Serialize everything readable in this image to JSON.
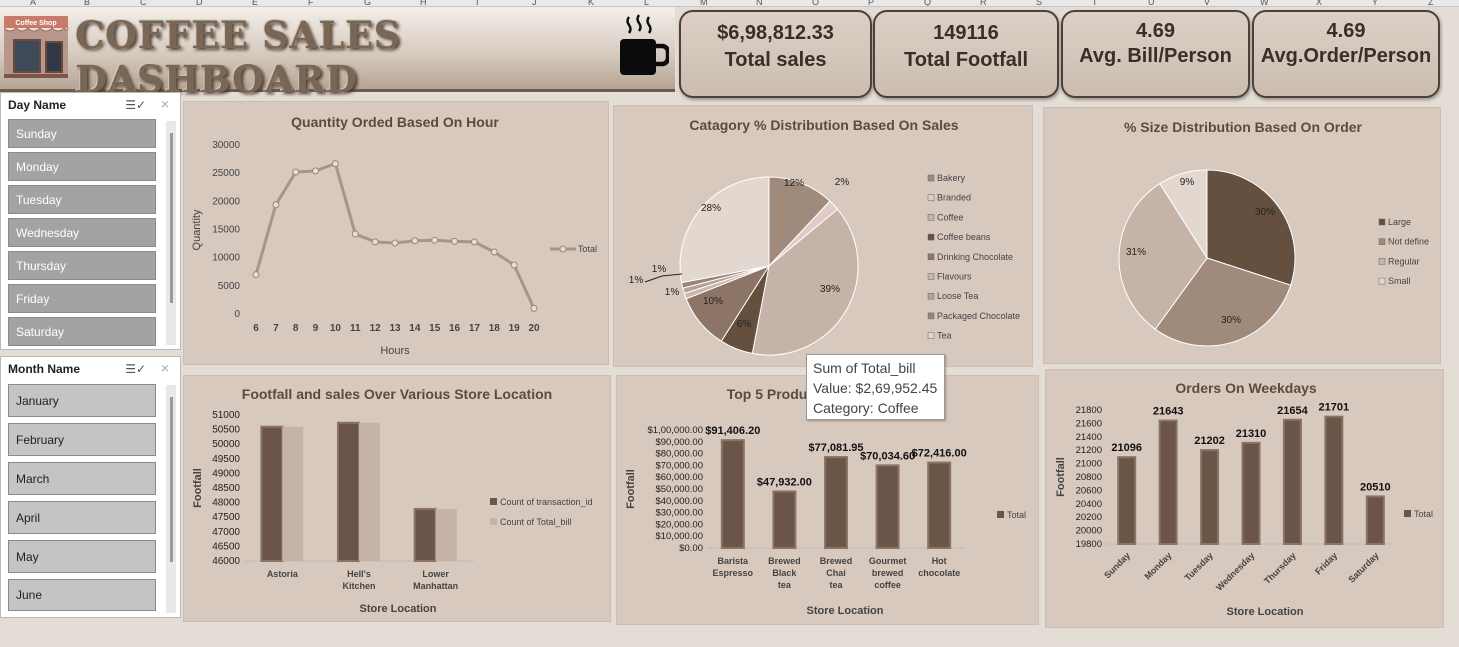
{
  "sheet_columns": [
    "A",
    "B",
    "C",
    "D",
    "E",
    "F",
    "G",
    "H",
    "I",
    "J",
    "K",
    "L",
    "M",
    "N",
    "O",
    "P",
    "Q",
    "R",
    "S",
    "T",
    "U",
    "V",
    "W",
    "X",
    "Y",
    "Z"
  ],
  "banner": {
    "title": "COFFEE SALES DASHBOARD",
    "shop_sign": "Coffee Shop"
  },
  "kpis": [
    {
      "value": "$6,98,812.33",
      "label": "Total sales"
    },
    {
      "value": "149116",
      "label": "Total Footfall"
    },
    {
      "value": "4.69",
      "label": "Avg. Bill/Person"
    },
    {
      "value": "4.69",
      "label": "Avg.Order/Person"
    }
  ],
  "slicer_day": {
    "title": "Day Name",
    "items": [
      "Sunday",
      "Monday",
      "Tuesday",
      "Wednesday",
      "Thursday",
      "Friday",
      "Saturday"
    ]
  },
  "slicer_month": {
    "title": "Month Name",
    "items": [
      "January",
      "February",
      "March",
      "April",
      "May",
      "June"
    ]
  },
  "colors": {
    "dark": "#6b5548",
    "mid": "#a08a7c",
    "light": "#c5b3a8",
    "pale": "#e3d8cf",
    "line": "#a8948a"
  },
  "tooltip": {
    "line1": "Sum of Total_bill",
    "line2": "Value: $2,69,952.45",
    "line3": "Category: Coffee"
  },
  "chart_data": [
    {
      "id": "hour",
      "type": "line",
      "title": "Quantity Orded Based On Hour",
      "xlabel": "Hours",
      "ylabel": "Quantity",
      "x": [
        6,
        7,
        8,
        9,
        10,
        11,
        12,
        13,
        14,
        15,
        16,
        17,
        18,
        19,
        20
      ],
      "series": [
        {
          "name": "Total",
          "values": [
            7000,
            19400,
            25200,
            25400,
            26700,
            14200,
            12800,
            12600,
            13000,
            13100,
            12900,
            12800,
            11000,
            8700,
            1000
          ]
        }
      ],
      "yticks": [
        "0",
        "5000",
        "10000",
        "15000",
        "20000",
        "25000",
        "30000"
      ],
      "ylim": [
        0,
        30000
      ],
      "legend": "right"
    },
    {
      "id": "category",
      "type": "pie",
      "title": "Catagory % Distribution Based On Sales",
      "labels": [
        "Bakery",
        "Branded",
        "Coffee",
        "Coffee beans",
        "Drinking Chocolate",
        "Flavours",
        "Loose Tea",
        "Packaged Chocolate",
        "Tea"
      ],
      "values": [
        12,
        2,
        39,
        6,
        10,
        1,
        1,
        1,
        28
      ],
      "value_labels": [
        "12%",
        "2%",
        "39%",
        "6%",
        "10%",
        "1%",
        "1%",
        "1%",
        "28%"
      ],
      "colors": [
        "#a08a7c",
        "#e4c9c9",
        "#c5b3a8",
        "#65503f",
        "#8c7566",
        "#c9b6aa",
        "#b7a296",
        "#9a8475",
        "#e3d8cf"
      ],
      "legend": "right"
    },
    {
      "id": "size",
      "type": "pie",
      "title": "% Size Distribution  Based On Order",
      "labels": [
        "Large",
        "Not define",
        "Regular",
        "Small"
      ],
      "values": [
        30,
        30,
        31,
        9
      ],
      "value_labels": [
        "30%",
        "30%",
        "31%",
        "9%"
      ],
      "colors": [
        "#65503f",
        "#a08a7c",
        "#c5b3a8",
        "#e3d8cf"
      ],
      "legend": "right"
    },
    {
      "id": "location",
      "type": "bar",
      "title": "Footfall and sales Over Various Store Location",
      "xlabel": "Store Location",
      "ylabel": "Footfall",
      "categories": [
        "Astoria",
        "Hell's Kitchen",
        "Lower Manhattan"
      ],
      "series": [
        {
          "name": "Count of transaction_id",
          "values": [
            50599,
            50735,
            47782
          ]
        },
        {
          "name": "Count of Total_bill",
          "values": [
            50599,
            50735,
            47782
          ]
        }
      ],
      "yticks": [
        "46000",
        "46500",
        "47000",
        "47500",
        "48000",
        "48500",
        "49000",
        "49500",
        "50000",
        "50500",
        "51000"
      ],
      "ylim": [
        46000,
        51000
      ],
      "legend": "right"
    },
    {
      "id": "products",
      "type": "bar",
      "title": "Top 5 Produ",
      "xlabel": "Store Location",
      "ylabel": "Footfall",
      "categories": [
        "Barista Espresso",
        "Brewed Black tea",
        "Brewed Chai tea",
        "Gourmet brewed coffee",
        "Hot chocolate"
      ],
      "series": [
        {
          "name": "Total",
          "values": [
            91406.2,
            47932.0,
            77081.95,
            70034.6,
            72416.0
          ]
        }
      ],
      "data_labels": [
        "$91,406.20",
        "$47,932.00",
        "$77,081.95",
        "$70,034.60",
        "$72,416.00"
      ],
      "yticks": [
        "$0.00",
        "$10,000.00",
        "$20,000.00",
        "$30,000.00",
        "$40,000.00",
        "$50,000.00",
        "$60,000.00",
        "$70,000.00",
        "$80,000.00",
        "$90,000.00",
        "$1,00,000.00"
      ],
      "ylim": [
        0,
        100000
      ],
      "legend": "right"
    },
    {
      "id": "weekdays",
      "type": "bar",
      "title": "Orders On Weekdays",
      "xlabel": "Store Location",
      "ylabel": "Footfall",
      "categories": [
        "Sunday",
        "Monday",
        "Tuesday",
        "Wednesday",
        "Thursday",
        "Friday",
        "Saturday"
      ],
      "series": [
        {
          "name": "Total",
          "values": [
            21096,
            21643,
            21202,
            21310,
            21654,
            21701,
            20510
          ]
        }
      ],
      "data_labels": [
        "21096",
        "21643",
        "21202",
        "21310",
        "21654",
        "21701",
        "20510"
      ],
      "yticks": [
        "19800",
        "20000",
        "20200",
        "20400",
        "20600",
        "20800",
        "21000",
        "21200",
        "21400",
        "21600",
        "21800"
      ],
      "ylim": [
        19800,
        21800
      ],
      "legend": "right"
    }
  ]
}
